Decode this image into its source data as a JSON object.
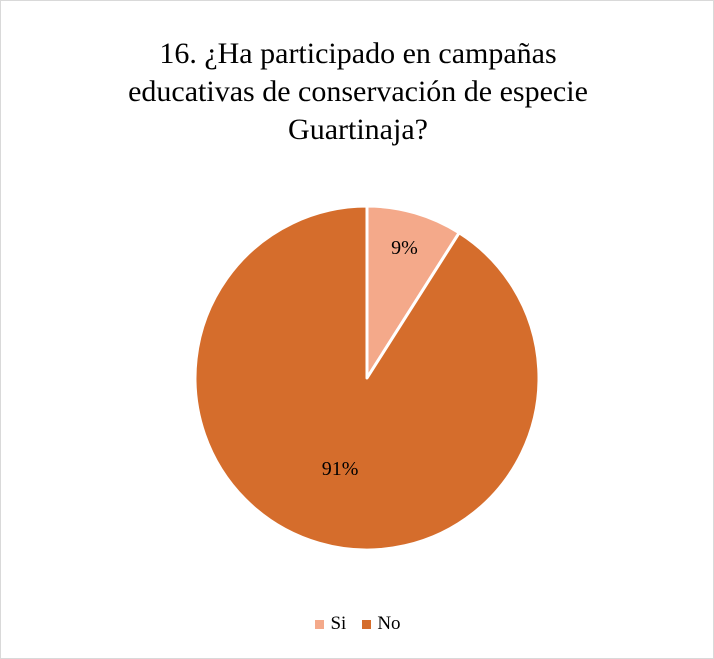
{
  "chart_data": {
    "type": "pie",
    "title_lines": [
      "16. ¿Ha participado en campañas",
      "educativas de conservación de especie",
      "Guartinaja?"
    ],
    "categories": [
      "Si",
      "No"
    ],
    "values": [
      9,
      91
    ],
    "labels": [
      "9%",
      "91%"
    ],
    "colors": [
      "#f4a98a",
      "#d56d2c"
    ],
    "legend_position": "bottom"
  }
}
